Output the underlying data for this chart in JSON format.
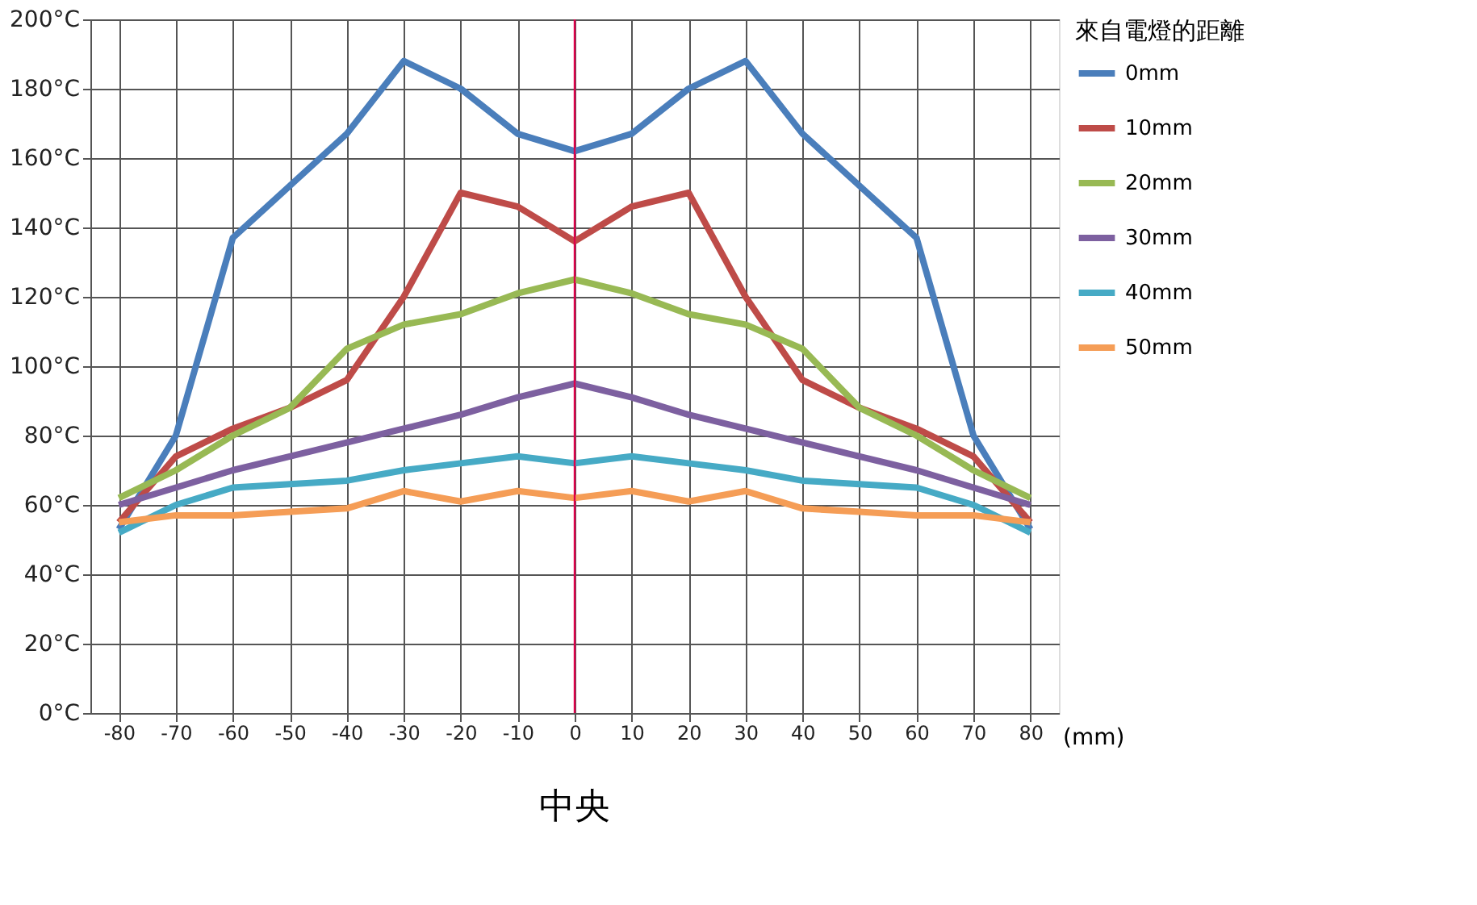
{
  "chart_data": {
    "type": "line",
    "xlabel": "(mm)",
    "legend_title": "來自電燈的距離",
    "legend": "right",
    "grid": true,
    "marker": "none",
    "line_style": "solid",
    "x": [
      -80,
      -70,
      -60,
      -50,
      -40,
      -30,
      -20,
      -10,
      0,
      10,
      20,
      30,
      40,
      50,
      60,
      70,
      80
    ],
    "xlim": [
      -85,
      85
    ],
    "xticks": [
      -80,
      -70,
      -60,
      -50,
      -40,
      -30,
      -20,
      -10,
      0,
      10,
      20,
      30,
      40,
      50,
      60,
      70,
      80
    ],
    "ylim": [
      0,
      200
    ],
    "yticks": [
      {
        "value": 0,
        "label": "0°C"
      },
      {
        "value": 20,
        "label": "20°C"
      },
      {
        "value": 40,
        "label": "40°C"
      },
      {
        "value": 60,
        "label": "60°C"
      },
      {
        "value": 80,
        "label": "80°C"
      },
      {
        "value": 100,
        "label": "100°C"
      },
      {
        "value": 120,
        "label": "120°C"
      },
      {
        "value": 140,
        "label": "140°C"
      },
      {
        "value": 160,
        "label": "160°C"
      },
      {
        "value": 180,
        "label": "180°C"
      },
      {
        "value": 200,
        "label": "200°C"
      }
    ],
    "series": [
      {
        "name": "0mm",
        "color": "#4a7ebb",
        "values": [
          53,
          80,
          137,
          152,
          167,
          188,
          180,
          167,
          162,
          167,
          180,
          188,
          167,
          152,
          137,
          80,
          53
        ]
      },
      {
        "name": "10mm",
        "color": "#be4b48",
        "values": [
          55,
          74,
          82,
          88,
          96,
          120,
          150,
          146,
          136,
          146,
          150,
          120,
          96,
          88,
          82,
          74,
          55
        ]
      },
      {
        "name": "20mm",
        "color": "#98b954",
        "values": [
          62,
          70,
          80,
          88,
          105,
          112,
          115,
          121,
          125,
          121,
          115,
          112,
          105,
          88,
          80,
          70,
          62
        ]
      },
      {
        "name": "30mm",
        "color": "#7d60a0",
        "values": [
          60,
          65,
          70,
          74,
          78,
          82,
          86,
          91,
          95,
          91,
          86,
          82,
          78,
          74,
          70,
          65,
          60
        ]
      },
      {
        "name": "40mm",
        "color": "#46aac5",
        "values": [
          52,
          60,
          65,
          66,
          67,
          70,
          72,
          74,
          72,
          74,
          72,
          70,
          67,
          66,
          65,
          60,
          52
        ]
      },
      {
        "name": "50mm",
        "color": "#f59d56",
        "values": [
          55,
          57,
          57,
          58,
          59,
          64,
          61,
          64,
          62,
          64,
          61,
          64,
          59,
          58,
          57,
          57,
          55
        ]
      }
    ],
    "ref_lines": [
      {
        "axis": "x",
        "value": 0,
        "color": "#e0004c"
      }
    ],
    "annotations": [
      "中央"
    ]
  }
}
